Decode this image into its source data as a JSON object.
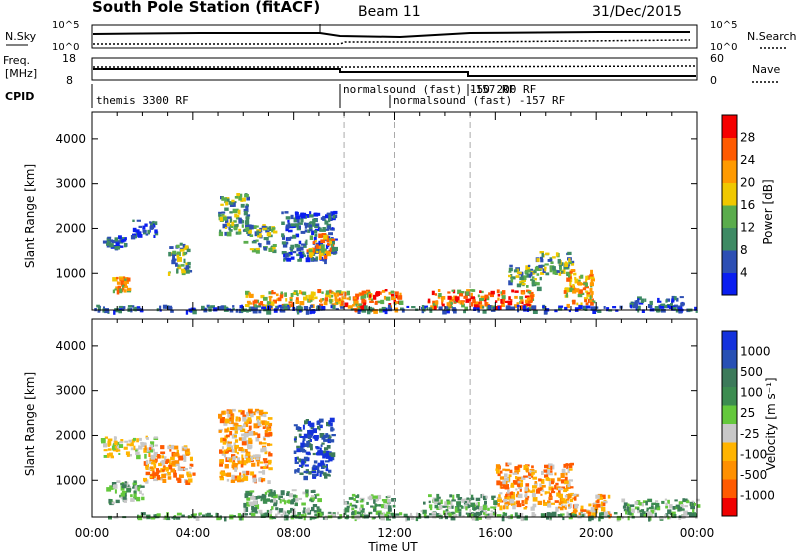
{
  "header": {
    "station": "South Pole Station (fitACF)",
    "beam": "Beam 11",
    "date": "31/Dec/2015"
  },
  "strips": {
    "nsky": {
      "label": "N.Sky",
      "ticks": [
        "10^5",
        "10^0"
      ],
      "right_label": "N.Search",
      "right_ticks": [
        "10^5",
        "10^0"
      ]
    },
    "freq": {
      "label_line1": "Freq.",
      "label_line2": "[MHz]",
      "ticks": [
        "18",
        "8"
      ],
      "right_label": "Nave",
      "right_ticks": [
        "60",
        "0"
      ]
    },
    "cpid": {
      "label": "CPID",
      "segments": [
        "themis 3300 RF",
        "normalsound (fast) -157 RF",
        "normalsound (fast) -157 RF",
        "150 200 RF"
      ]
    }
  },
  "colors": {
    "power": [
      "#0a1ef0",
      "#2d4fb4",
      "#3e8a64",
      "#5aac4c",
      "#f0c800",
      "#ff9a00",
      "#ff5a00",
      "#f50000"
    ],
    "velocity": [
      "#f00000",
      "#ff5a00",
      "#ff9000",
      "#ffb400",
      "#c8c8c8",
      "#64c83c",
      "#3c8c50",
      "#3c7a5a",
      "#2850b4",
      "#1432dc"
    ]
  },
  "chart_data": [
    {
      "type": "heatmap",
      "name": "power",
      "xlabel": "",
      "ylabel": "Slant Range [km]",
      "xlim": [
        "00:00",
        "00:00"
      ],
      "ylim": [
        180,
        4600
      ],
      "yticks": [
        "1000",
        "2000",
        "3000",
        "4000"
      ],
      "colorbar": {
        "label": "Power [dB]",
        "ticks": [
          "4",
          "8",
          "12",
          "16",
          "20",
          "24",
          "28"
        ],
        "range": [
          0,
          32
        ]
      },
      "regions": [
        {
          "t0": 0.3,
          "t1": 1.5,
          "r0": 1600,
          "r1": 1850,
          "level": "low"
        },
        {
          "t0": 1.5,
          "t1": 2.5,
          "r0": 1850,
          "r1": 2250,
          "level": "low"
        },
        {
          "t0": 0.8,
          "t1": 1.4,
          "r0": 600,
          "r1": 950,
          "level": "high"
        },
        {
          "t0": 3.0,
          "t1": 3.8,
          "r0": 1000,
          "r1": 1700,
          "level": "mid"
        },
        {
          "t0": 5.0,
          "t1": 6.2,
          "r0": 1900,
          "r1": 2800,
          "level": "mid"
        },
        {
          "t0": 6.0,
          "t1": 7.2,
          "r0": 1500,
          "r1": 2100,
          "level": "mid"
        },
        {
          "t0": 7.5,
          "t1": 9.6,
          "r0": 1300,
          "r1": 2400,
          "level": "low"
        },
        {
          "t0": 8.5,
          "t1": 9.5,
          "r0": 1400,
          "r1": 1900,
          "level": "high"
        },
        {
          "t0": 6.0,
          "t1": 10.0,
          "r0": 300,
          "r1": 650,
          "level": "high"
        },
        {
          "t0": 10.0,
          "t1": 12.2,
          "r0": 200,
          "r1": 650,
          "level": "max"
        },
        {
          "t0": 13.3,
          "t1": 17.5,
          "r0": 250,
          "r1": 650,
          "level": "max"
        },
        {
          "t0": 16.5,
          "t1": 17.8,
          "r0": 700,
          "r1": 1200,
          "level": "mid"
        },
        {
          "t0": 17.5,
          "t1": 19.0,
          "r0": 1000,
          "r1": 1500,
          "level": "mid"
        },
        {
          "t0": 18.7,
          "t1": 19.8,
          "r0": 300,
          "r1": 1100,
          "level": "high"
        },
        {
          "t0": 21.3,
          "t1": 23.5,
          "r0": 250,
          "r1": 500,
          "level": "low"
        },
        {
          "t0": 0.0,
          "t1": 24.0,
          "r0": 180,
          "r1": 300,
          "level": "low"
        }
      ]
    },
    {
      "type": "heatmap",
      "name": "velocity",
      "xlabel": "Time UT",
      "ylabel": "Slant Range [km]",
      "xlim": [
        "00:00",
        "00:00"
      ],
      "ylim": [
        180,
        4600
      ],
      "yticks": [
        "1000",
        "2000",
        "3000",
        "4000"
      ],
      "xticks": [
        "00:00",
        "04:00",
        "08:00",
        "12:00",
        "16:00",
        "20:00",
        "00:00"
      ],
      "colorbar": {
        "label": "Velocity [m s⁻¹]",
        "ticks": [
          "-1000",
          "-500",
          "-100",
          "-25",
          "25",
          "100",
          "500",
          "1000"
        ],
        "range": [
          -1250,
          1250
        ]
      },
      "regions": [
        {
          "t0": 0.3,
          "t1": 2.5,
          "r0": 1550,
          "r1": 2000,
          "level": "gray"
        },
        {
          "t0": 2.0,
          "t1": 4.0,
          "r0": 1000,
          "r1": 1800,
          "level": "neg"
        },
        {
          "t0": 5.0,
          "t1": 7.0,
          "r0": 1000,
          "r1": 2600,
          "level": "neg"
        },
        {
          "t0": 8.0,
          "t1": 9.5,
          "r0": 1100,
          "r1": 2400,
          "level": "pos"
        },
        {
          "t0": 0.5,
          "t1": 2.0,
          "r0": 500,
          "r1": 1000,
          "level": "green"
        },
        {
          "t0": 6.0,
          "t1": 9.0,
          "r0": 300,
          "r1": 800,
          "level": "green"
        },
        {
          "t0": 10.0,
          "t1": 12.0,
          "r0": 200,
          "r1": 700,
          "level": "green"
        },
        {
          "t0": 13.0,
          "t1": 16.0,
          "r0": 200,
          "r1": 700,
          "level": "green"
        },
        {
          "t0": 16.0,
          "t1": 19.0,
          "r0": 400,
          "r1": 1400,
          "level": "neg"
        },
        {
          "t0": 19.0,
          "t1": 20.5,
          "r0": 200,
          "r1": 700,
          "level": "neg"
        },
        {
          "t0": 21.0,
          "t1": 24.0,
          "r0": 250,
          "r1": 600,
          "level": "green"
        },
        {
          "t0": 0.0,
          "t1": 24.0,
          "r0": 180,
          "r1": 300,
          "level": "green"
        }
      ]
    }
  ]
}
